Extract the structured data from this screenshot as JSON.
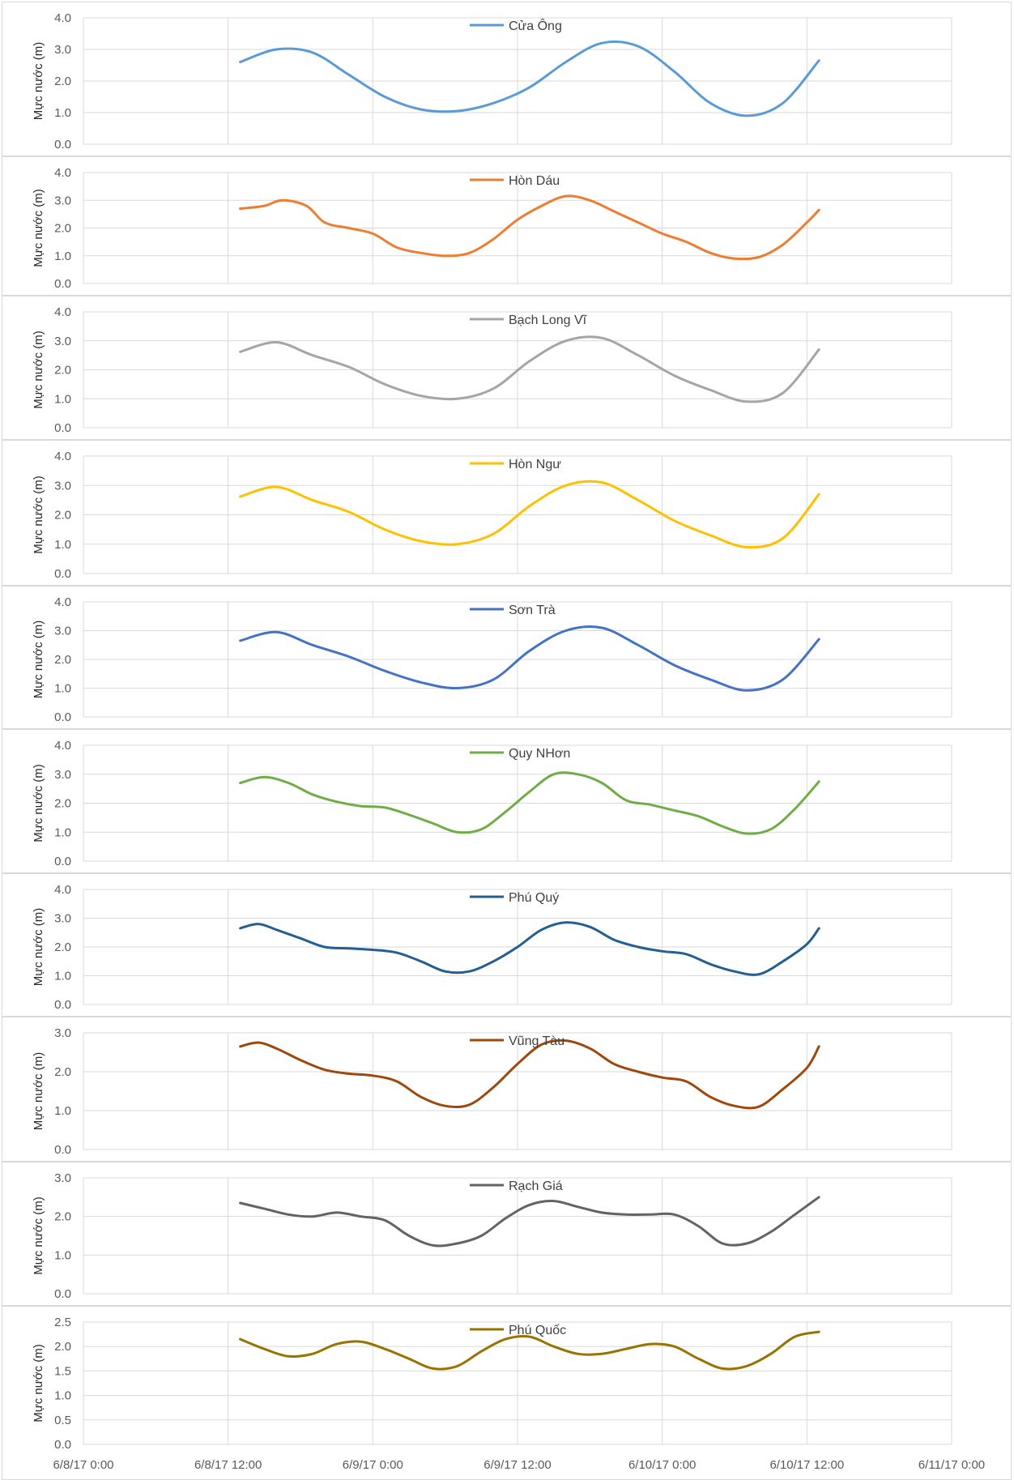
{
  "x_tick_labels": [
    "6/8/17 0:00",
    "6/8/17 12:00",
    "6/9/17 0:00",
    "6/9/17 12:00",
    "6/10/17 0:00",
    "6/10/17 12:00",
    "6/11/17 0:00"
  ],
  "chart_data": [
    {
      "type": "line",
      "name": "Cửa Ông",
      "color": "#5b9bd5",
      "ylabel": "Mực nước (m)",
      "ylim": [
        0,
        4
      ],
      "yticks": [
        "0.0",
        "1.0",
        "2.0",
        "3.0",
        "4.0"
      ],
      "legend_position": "top-center",
      "x_hours": [
        13,
        16,
        19,
        22,
        25,
        28,
        31,
        34,
        37,
        40,
        43,
        46,
        49,
        52,
        55,
        58,
        61
      ],
      "values": [
        2.6,
        3.0,
        2.9,
        2.2,
        1.5,
        1.1,
        1.05,
        1.3,
        1.8,
        2.6,
        3.2,
        3.1,
        2.3,
        1.3,
        0.9,
        1.3,
        2.65
      ]
    },
    {
      "type": "line",
      "name": "Hòn Dáu",
      "color": "#ed7d31",
      "ylabel": "Mực nước (m)",
      "ylim": [
        0,
        4
      ],
      "yticks": [
        "0.0",
        "1.0",
        "2.0",
        "3.0",
        "4.0"
      ],
      "legend_position": "top-center",
      "x_hours": [
        13,
        15,
        16.5,
        18.5,
        20,
        22,
        24,
        26,
        28,
        30,
        32,
        34,
        36,
        38,
        40,
        42,
        44,
        46,
        48,
        50,
        52,
        54,
        56,
        58,
        60,
        61
      ],
      "values": [
        2.7,
        2.8,
        3.0,
        2.8,
        2.2,
        2.0,
        1.8,
        1.3,
        1.1,
        1.0,
        1.1,
        1.6,
        2.3,
        2.8,
        3.15,
        3.0,
        2.6,
        2.2,
        1.8,
        1.5,
        1.1,
        0.9,
        0.95,
        1.4,
        2.2,
        2.65
      ]
    },
    {
      "type": "line",
      "name": "Bạch Long Vĩ",
      "color": "#a5a5a5",
      "ylabel": "Mực nước (m)",
      "ylim": [
        0,
        4
      ],
      "yticks": [
        "0.0",
        "1.0",
        "2.0",
        "3.0",
        "4.0"
      ],
      "legend_position": "top-center",
      "x_hours": [
        13,
        16,
        19,
        22,
        25,
        28,
        31,
        34,
        37,
        40,
        43,
        46,
        49,
        52,
        55,
        58,
        61
      ],
      "values": [
        2.62,
        2.95,
        2.5,
        2.1,
        1.5,
        1.1,
        1.0,
        1.35,
        2.3,
        3.0,
        3.1,
        2.5,
        1.8,
        1.3,
        0.9,
        1.2,
        2.7
      ]
    },
    {
      "type": "line",
      "name": "Hòn Ngư",
      "color": "#ffc000",
      "ylabel": "Mực nước (m)",
      "ylim": [
        0,
        4
      ],
      "yticks": [
        "0.0",
        "1.0",
        "2.0",
        "3.0",
        "4.0"
      ],
      "legend_position": "top-center",
      "x_hours": [
        13,
        16,
        19,
        22,
        25,
        28,
        31,
        34,
        37,
        40,
        43,
        46,
        49,
        52,
        55,
        58,
        61
      ],
      "values": [
        2.62,
        2.95,
        2.5,
        2.1,
        1.5,
        1.1,
        1.0,
        1.35,
        2.3,
        3.0,
        3.1,
        2.5,
        1.8,
        1.3,
        0.9,
        1.2,
        2.7
      ]
    },
    {
      "type": "line",
      "name": "Sơn Trà",
      "color": "#4472c4",
      "ylabel": "Mực nước (m)",
      "ylim": [
        0,
        4
      ],
      "yticks": [
        "0.0",
        "1.0",
        "2.0",
        "3.0",
        "4.0"
      ],
      "legend_position": "top-center",
      "x_hours": [
        13,
        16,
        19,
        22,
        25,
        28,
        31,
        34,
        37,
        40,
        43,
        46,
        49,
        52,
        55,
        58,
        61
      ],
      "values": [
        2.65,
        2.95,
        2.5,
        2.1,
        1.6,
        1.2,
        1.0,
        1.3,
        2.3,
        3.0,
        3.1,
        2.5,
        1.8,
        1.3,
        0.92,
        1.3,
        2.7
      ]
    },
    {
      "type": "line",
      "name": "Quy NHơn",
      "color": "#70ad47",
      "ylabel": "Mực nước (m)",
      "ylim": [
        0,
        4
      ],
      "yticks": [
        "0.0",
        "1.0",
        "2.0",
        "3.0",
        "4.0"
      ],
      "legend_position": "top-center",
      "x_hours": [
        13,
        15,
        17,
        19,
        21,
        23,
        25,
        27,
        29,
        31,
        33,
        35,
        37,
        39,
        41,
        43,
        45,
        47,
        49,
        51,
        53,
        55,
        57,
        59,
        61
      ],
      "values": [
        2.7,
        2.9,
        2.7,
        2.3,
        2.05,
        1.9,
        1.85,
        1.6,
        1.3,
        1.0,
        1.1,
        1.7,
        2.4,
        3.0,
        3.0,
        2.7,
        2.1,
        1.95,
        1.75,
        1.55,
        1.2,
        0.95,
        1.1,
        1.8,
        2.75
      ]
    },
    {
      "type": "line",
      "name": "Phú Quý",
      "color": "#255e91",
      "ylabel": "Mực nước (m)",
      "ylim": [
        0,
        4
      ],
      "yticks": [
        "0.0",
        "1.0",
        "2.0",
        "3.0",
        "4.0"
      ],
      "legend_position": "top-center",
      "x_hours": [
        13,
        14.5,
        16,
        18,
        20,
        22,
        24,
        26,
        28,
        30,
        32,
        34,
        36,
        38,
        40,
        42,
        44,
        46,
        48,
        50,
        52,
        54,
        56,
        58,
        60,
        61
      ],
      "values": [
        2.65,
        2.8,
        2.6,
        2.3,
        2.0,
        1.95,
        1.9,
        1.8,
        1.5,
        1.15,
        1.15,
        1.5,
        2.0,
        2.6,
        2.85,
        2.7,
        2.25,
        2.0,
        1.85,
        1.75,
        1.4,
        1.15,
        1.05,
        1.5,
        2.1,
        2.65
      ]
    },
    {
      "type": "line",
      "name": "Vũng Tàu",
      "color": "#9e480e",
      "ylabel": "Mực nước (m)",
      "ylim": [
        0,
        3
      ],
      "yticks": [
        "0.0",
        "1.0",
        "2.0",
        "3.0"
      ],
      "legend_position": "top-center",
      "x_hours": [
        13,
        14.5,
        16,
        18,
        20,
        22,
        24,
        26,
        28,
        30,
        32,
        34,
        36,
        38,
        40,
        42,
        44,
        46,
        48,
        50,
        52,
        54,
        56,
        58,
        60,
        61
      ],
      "values": [
        2.65,
        2.75,
        2.6,
        2.3,
        2.05,
        1.95,
        1.9,
        1.75,
        1.35,
        1.12,
        1.15,
        1.6,
        2.2,
        2.7,
        2.8,
        2.6,
        2.2,
        2.0,
        1.85,
        1.75,
        1.35,
        1.12,
        1.1,
        1.55,
        2.1,
        2.65
      ]
    },
    {
      "type": "line",
      "name": "Rạch Giá",
      "color": "#636363",
      "ylabel": "Mực nước (m)",
      "ylim": [
        0,
        3
      ],
      "yticks": [
        "0.0",
        "1.0",
        "2.0",
        "3.0"
      ],
      "legend_position": "top-center",
      "x_hours": [
        13,
        15,
        17,
        19,
        21,
        23,
        25,
        27,
        29,
        31,
        33,
        35,
        37,
        39,
        41,
        43,
        45,
        47,
        49,
        51,
        53,
        55,
        57,
        59,
        61
      ],
      "values": [
        2.35,
        2.2,
        2.05,
        2.0,
        2.1,
        2.0,
        1.9,
        1.5,
        1.25,
        1.3,
        1.5,
        1.95,
        2.3,
        2.4,
        2.25,
        2.1,
        2.05,
        2.05,
        2.05,
        1.75,
        1.3,
        1.3,
        1.6,
        2.05,
        2.5
      ]
    },
    {
      "type": "line",
      "name": "Phú Quốc",
      "color": "#997300",
      "ylabel": "Mực nước (m)",
      "ylim": [
        0,
        2.5
      ],
      "yticks": [
        "0.0",
        "0.5",
        "1.0",
        "1.5",
        "2.0",
        "2.5"
      ],
      "legend_position": "top-center",
      "x_hours": [
        13,
        15,
        17,
        19,
        21,
        23,
        25,
        27,
        29,
        31,
        33,
        35,
        37,
        39,
        41,
        43,
        45,
        47,
        49,
        51,
        53,
        55,
        57,
        59,
        61
      ],
      "values": [
        2.15,
        1.95,
        1.8,
        1.85,
        2.05,
        2.1,
        1.95,
        1.75,
        1.55,
        1.6,
        1.9,
        2.15,
        2.2,
        2.0,
        1.85,
        1.85,
        1.95,
        2.05,
        2.0,
        1.75,
        1.55,
        1.6,
        1.85,
        2.2,
        2.3
      ]
    }
  ]
}
